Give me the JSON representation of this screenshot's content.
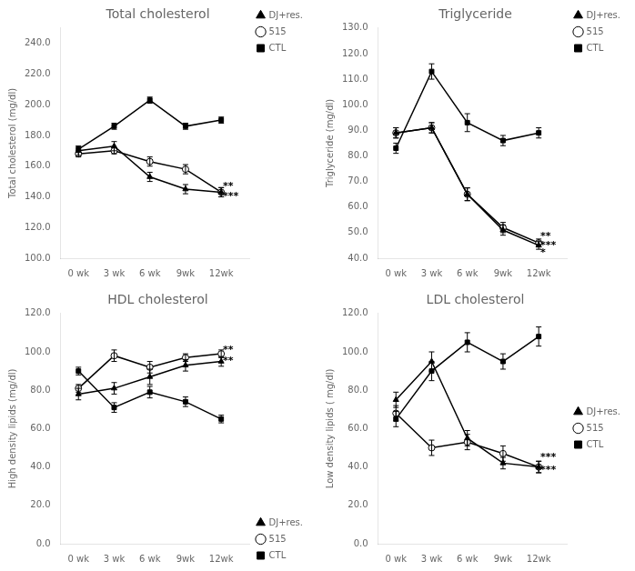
{
  "chart_data": [
    {
      "type": "line",
      "title": "Total cholesterol",
      "y_label": "Total cholesterol (mg/dl)",
      "x": [
        0,
        1,
        2,
        3,
        4
      ],
      "xlim": [
        -0.5,
        4.8
      ],
      "xticks": [
        {
          "value": 0,
          "label": "0 wk"
        },
        {
          "value": 1,
          "label": "3 wk"
        },
        {
          "value": 2,
          "label": "6 wk"
        },
        {
          "value": 3,
          "label": "9wk"
        },
        {
          "value": 4,
          "label": "12wk"
        }
      ],
      "ylim": [
        100.0,
        250.0
      ],
      "yticks": [
        {
          "value": 100,
          "label": "100.0"
        },
        {
          "value": 120,
          "label": "120.0"
        },
        {
          "value": 140,
          "label": "140.0"
        },
        {
          "value": 160,
          "label": "160.0"
        },
        {
          "value": 180,
          "label": "180.0"
        },
        {
          "value": 200,
          "label": "200.0"
        },
        {
          "value": 220,
          "label": "220.0"
        },
        {
          "value": 240,
          "label": "240.0"
        }
      ],
      "grid": false,
      "legend": "upper right",
      "series": [
        {
          "name": "DJ+res.",
          "color": "#000000",
          "marker": "triangle",
          "values": [
            170.0,
            173.0,
            153.0,
            145.0,
            143.0
          ],
          "errors": [
            3.0,
            3.0,
            3.0,
            3.0,
            3.0
          ]
        },
        {
          "name": "515",
          "color": "#000000",
          "marker": "open_circle",
          "values": [
            168.0,
            170.0,
            163.0,
            158.0,
            143.0
          ],
          "errors": [
            2.0,
            2.0,
            3.0,
            3.0,
            3.0
          ]
        },
        {
          "name": "CTL",
          "color": "#000000",
          "marker": "square",
          "values": [
            171.0,
            186.0,
            203.0,
            186.0,
            190.0
          ],
          "errors": [
            2.0,
            2.0,
            2.0,
            2.0,
            2.0
          ]
        }
      ],
      "annotations": [
        {
          "text": "**",
          "x": 4.05,
          "y": 147.0
        },
        {
          "text": "***",
          "x": 4.05,
          "y": 140.0
        }
      ]
    },
    {
      "type": "line",
      "title": "Triglyceride",
      "y_label": "Triglyceride (mg/dl)",
      "x": [
        0,
        1,
        2,
        3,
        4
      ],
      "xlim": [
        -0.5,
        4.8
      ],
      "xticks": [
        {
          "value": 0,
          "label": "0 wk"
        },
        {
          "value": 1,
          "label": "3 wk"
        },
        {
          "value": 2,
          "label": "6 wk"
        },
        {
          "value": 3,
          "label": "9wk"
        },
        {
          "value": 4,
          "label": "12wk"
        }
      ],
      "ylim": [
        40.0,
        130.0
      ],
      "yticks": [
        {
          "value": 40,
          "label": "40.0"
        },
        {
          "value": 50,
          "label": "50.0"
        },
        {
          "value": 60,
          "label": "60.0"
        },
        {
          "value": 70,
          "label": "70.0"
        },
        {
          "value": 80,
          "label": "80.0"
        },
        {
          "value": 90,
          "label": "90.0"
        },
        {
          "value": 100,
          "label": "100.0"
        },
        {
          "value": 110,
          "label": "110.0"
        },
        {
          "value": 120,
          "label": "120.0"
        },
        {
          "value": 130,
          "label": "130.0"
        }
      ],
      "grid": false,
      "legend": "upper right",
      "series": [
        {
          "name": "DJ+res.",
          "color": "#000000",
          "marker": "triangle",
          "values": [
            89.0,
            91.0,
            65.0,
            51.0,
            45.0
          ],
          "errors": [
            2.0,
            2.0,
            2.5,
            2.0,
            1.5
          ]
        },
        {
          "name": "515",
          "color": "#000000",
          "marker": "open_circle",
          "values": [
            89.0,
            91.0,
            65.0,
            52.0,
            46.0
          ],
          "errors": [
            2.0,
            2.0,
            2.5,
            2.0,
            1.5
          ]
        },
        {
          "name": "CTL",
          "color": "#000000",
          "marker": "square",
          "values": [
            83.0,
            113.0,
            93.0,
            86.0,
            89.0
          ],
          "errors": [
            2.0,
            3.0,
            3.5,
            2.0,
            2.0
          ]
        }
      ],
      "annotations": [
        {
          "text": "**",
          "x": 4.05,
          "y": 48.5
        },
        {
          "text": "***",
          "x": 4.05,
          "y": 45.0
        },
        {
          "text": "*",
          "x": 4.05,
          "y": 42.0
        }
      ]
    },
    {
      "type": "line",
      "title": "HDL cholesterol",
      "y_label": "High density lipids (mg/dl)",
      "x": [
        0,
        1,
        2,
        3,
        4
      ],
      "xlim": [
        -0.5,
        4.8
      ],
      "xticks": [
        {
          "value": 0,
          "label": "0 wk"
        },
        {
          "value": 1,
          "label": "3 wk"
        },
        {
          "value": 2,
          "label": "6 wk"
        },
        {
          "value": 3,
          "label": "9wk"
        },
        {
          "value": 4,
          "label": "12wk"
        }
      ],
      "ylim": [
        0.0,
        120.0
      ],
      "yticks": [
        {
          "value": 0,
          "label": "0.0"
        },
        {
          "value": 20,
          "label": "20.0"
        },
        {
          "value": 40,
          "label": "40.0"
        },
        {
          "value": 60,
          "label": "60.0"
        },
        {
          "value": 80,
          "label": "80.0"
        },
        {
          "value": 100,
          "label": "100.0"
        },
        {
          "value": 120,
          "label": "120.0"
        }
      ],
      "grid": false,
      "legend": "lower right",
      "series": [
        {
          "name": "DJ+res.",
          "color": "#000000",
          "marker": "triangle",
          "values": [
            78.0,
            81.0,
            87.0,
            93.0,
            95.0
          ],
          "errors": [
            3.0,
            3.0,
            4.0,
            3.0,
            2.5
          ]
        },
        {
          "name": "515",
          "color": "#000000",
          "marker": "open_circle",
          "values": [
            81.0,
            98.0,
            92.0,
            97.0,
            99.0
          ],
          "errors": [
            2.0,
            3.0,
            3.0,
            2.0,
            2.0
          ]
        },
        {
          "name": "CTL",
          "color": "#000000",
          "marker": "square",
          "values": [
            90.0,
            71.0,
            79.0,
            74.0,
            65.0
          ],
          "errors": [
            2.0,
            2.5,
            3.0,
            2.5,
            2.0
          ]
        }
      ],
      "annotations": [
        {
          "text": "**",
          "x": 4.05,
          "y": 101.0
        },
        {
          "text": "**",
          "x": 4.05,
          "y": 95.0
        }
      ]
    },
    {
      "type": "line",
      "title": "LDL cholesterol",
      "y_label": "Low density lipids ( mg/dl)",
      "x": [
        0,
        1,
        2,
        3,
        4
      ],
      "xlim": [
        -0.5,
        4.8
      ],
      "xticks": [
        {
          "value": 0,
          "label": "0 wk"
        },
        {
          "value": 1,
          "label": "3 wk"
        },
        {
          "value": 2,
          "label": "6 wk"
        },
        {
          "value": 3,
          "label": "9wk"
        },
        {
          "value": 4,
          "label": "12wk"
        }
      ],
      "ylim": [
        0.0,
        120.0
      ],
      "yticks": [
        {
          "value": 0,
          "label": "0.0"
        },
        {
          "value": 20,
          "label": "20.0"
        },
        {
          "value": 40,
          "label": "40.0"
        },
        {
          "value": 60,
          "label": "60.0"
        },
        {
          "value": 80,
          "label": "80.0"
        },
        {
          "value": 100,
          "label": "100.0"
        },
        {
          "value": 120,
          "label": "120.0"
        }
      ],
      "grid": false,
      "legend": "center right",
      "series": [
        {
          "name": "DJ+res.",
          "color": "#000000",
          "marker": "triangle",
          "values": [
            75.0,
            95.0,
            55.0,
            42.0,
            40.0
          ],
          "errors": [
            4.0,
            5.0,
            4.0,
            3.0,
            3.0
          ]
        },
        {
          "name": "515",
          "color": "#000000",
          "marker": "open_circle",
          "values": [
            68.0,
            50.0,
            53.0,
            47.0,
            40.0
          ],
          "errors": [
            4.0,
            4.0,
            4.0,
            4.0,
            3.0
          ]
        },
        {
          "name": "CTL",
          "color": "#000000",
          "marker": "square",
          "values": [
            65.0,
            90.0,
            105.0,
            95.0,
            108.0
          ],
          "errors": [
            4.0,
            5.0,
            5.0,
            4.0,
            5.0
          ]
        }
      ],
      "annotations": [
        {
          "text": "***",
          "x": 4.05,
          "y": 45.0
        },
        {
          "text": "***",
          "x": 4.05,
          "y": 38.5
        }
      ]
    }
  ]
}
